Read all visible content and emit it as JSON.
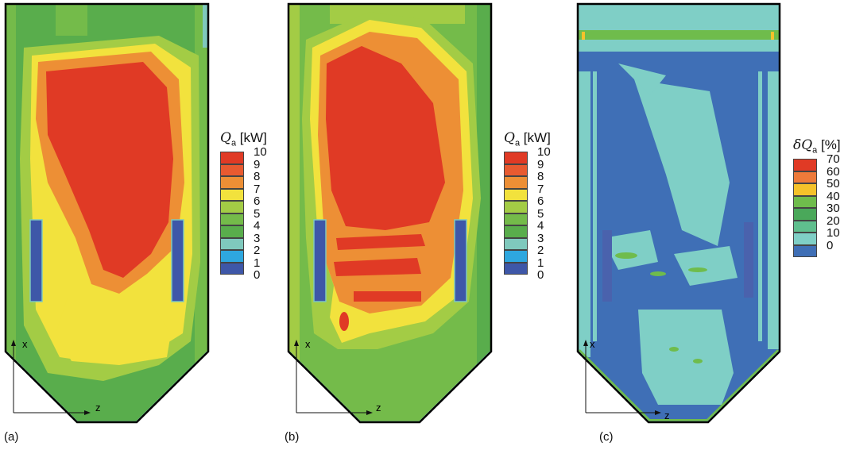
{
  "panels": [
    {
      "id": "a",
      "label": "(a)",
      "legend": {
        "symbol": "Q",
        "subscript": "a",
        "unit": "[kW]",
        "ticks": [
          "10",
          "9",
          "8",
          "7",
          "6",
          "5",
          "4",
          "3",
          "2",
          "1",
          "0"
        ],
        "colors": [
          "#e03a25",
          "#e85a30",
          "#ed8f35",
          "#f2e23d",
          "#a3cc45",
          "#74bb4a",
          "#59ad4c",
          "#7fc9bd",
          "#2ea7df",
          "#3e57a8",
          "#3e57a8"
        ]
      },
      "axes": {
        "x": "x",
        "z": "z"
      }
    },
    {
      "id": "b",
      "label": "(b)",
      "legend": {
        "symbol": "Q",
        "subscript": "a",
        "unit": "[kW]",
        "ticks": [
          "10",
          "9",
          "8",
          "7",
          "6",
          "5",
          "4",
          "3",
          "2",
          "1",
          "0"
        ],
        "colors": [
          "#e03a25",
          "#e85a30",
          "#ed8f35",
          "#f2e23d",
          "#a3cc45",
          "#74bb4a",
          "#59ad4c",
          "#7fc9bd",
          "#2ea7df",
          "#3e57a8",
          "#3e57a8"
        ]
      },
      "axes": {
        "x": "x",
        "z": "z"
      }
    },
    {
      "id": "c",
      "label": "(c)",
      "legend": {
        "symbol": "δQ",
        "subscript": "a",
        "unit": "[%]",
        "ticks": [
          "70",
          "60",
          "50",
          "40",
          "30",
          "20",
          "10",
          "0"
        ],
        "colors": [
          "#e03a25",
          "#ee7a3a",
          "#f5c22a",
          "#6fbc4c",
          "#4aa85a",
          "#5fbf8e",
          "#7fcfc6",
          "#3f6fb6"
        ]
      },
      "axes": {
        "x": "x",
        "z": "z"
      }
    }
  ]
}
